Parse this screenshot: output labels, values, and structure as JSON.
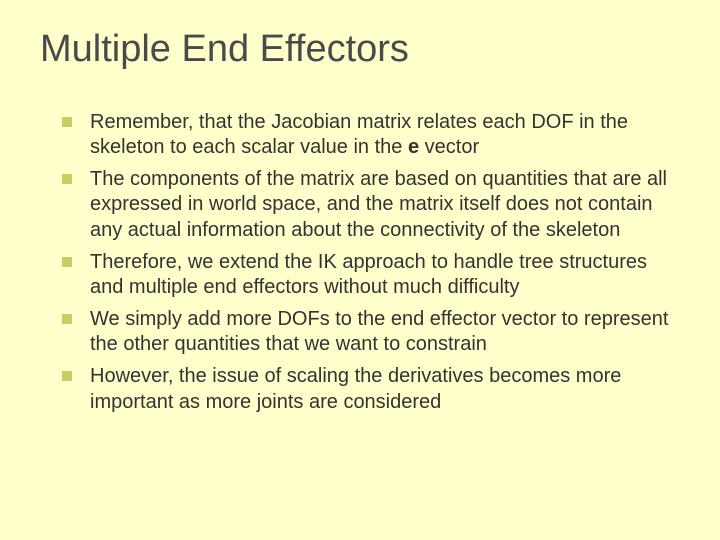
{
  "slide": {
    "title": "Multiple End Effectors",
    "title_color": "#4a4a4a",
    "title_fontsize": 38,
    "background_color": "#ffffcc",
    "bullet_color": "#cccc66",
    "body_text_color": "#333333",
    "body_fontsize": 20,
    "bullets": [
      {
        "pre": "Remember, that the Jacobian matrix relates each DOF in the skeleton to each scalar value in the ",
        "bold": "e",
        "post": " vector"
      },
      {
        "pre": "The components of the matrix are based on quantities that are all expressed in world space, and the matrix itself does not contain any actual information about the connectivity of the skeleton",
        "bold": "",
        "post": ""
      },
      {
        "pre": "Therefore, we extend the IK approach to handle tree structures and multiple end effectors without much difficulty",
        "bold": "",
        "post": ""
      },
      {
        "pre": "We simply add more DOFs to the end effector vector to represent the other quantities that we want to constrain",
        "bold": "",
        "post": ""
      },
      {
        "pre": "However, the issue of scaling the derivatives becomes more important as more joints are considered",
        "bold": "",
        "post": ""
      }
    ]
  }
}
